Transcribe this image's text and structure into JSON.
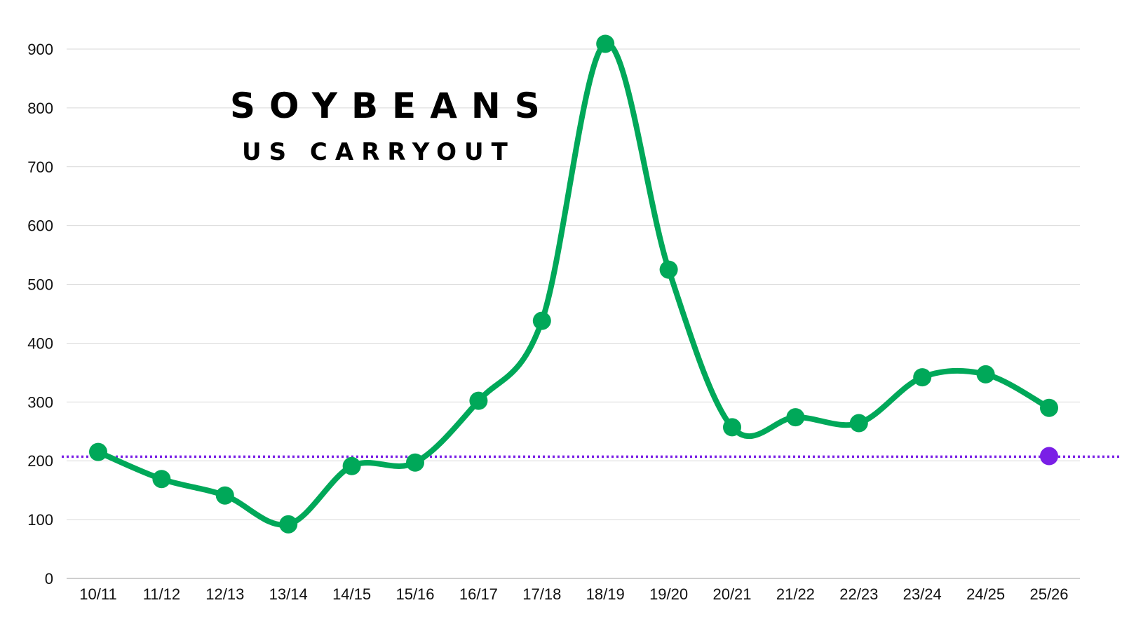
{
  "chart_data": {
    "type": "line",
    "title": "SOYBEANS",
    "subtitle": "US CARRYOUT",
    "xlabel": "",
    "ylabel": "",
    "categories": [
      "10/11",
      "11/12",
      "12/13",
      "13/14",
      "14/15",
      "15/16",
      "16/17",
      "17/18",
      "18/19",
      "19/20",
      "20/21",
      "21/22",
      "22/23",
      "23/24",
      "24/25",
      "25/26"
    ],
    "series": [
      {
        "values": [
          215,
          169,
          141,
          92,
          191,
          197,
          302,
          438,
          909,
          525,
          257,
          274,
          264,
          342,
          347,
          290
        ],
        "color": "#00a859"
      }
    ],
    "reference_line": {
      "value": 207,
      "style": "dotted",
      "color": "#7a1fe6"
    },
    "highlight_point": {
      "category": "25/26",
      "value": 208,
      "color": "#7a1fe6"
    },
    "ylim": [
      0,
      900
    ],
    "yticks": [
      0,
      100,
      200,
      300,
      400,
      500,
      600,
      700,
      800,
      900
    ],
    "grid": "horizontal",
    "grid_color": "#d9d9d9",
    "axis_color": "#bfbfbf"
  }
}
